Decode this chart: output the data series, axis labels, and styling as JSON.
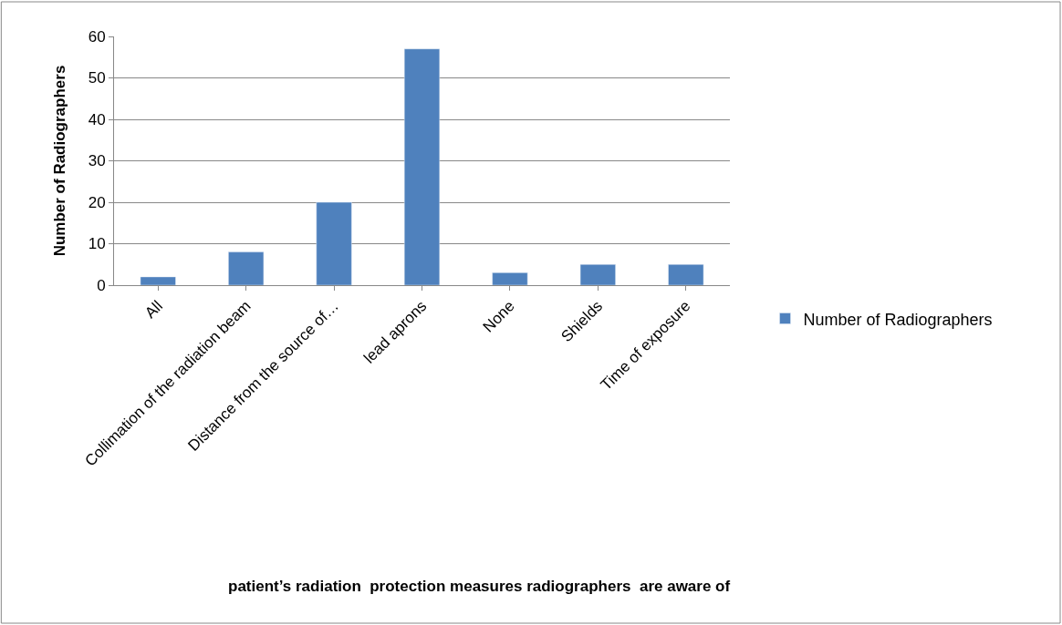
{
  "chart_data": {
    "type": "bar",
    "annotations": [
      "patient’s radiation  protection measures radiographers  are aware of"
    ],
    "ylabel": "Number of Radiographers",
    "categories": [
      "All",
      "Collimation of the radiation beam",
      "Distance from the source of…",
      "lead aprons",
      "None",
      "Shields",
      "Time of exposure"
    ],
    "series": [
      {
        "name": "Number of Radiographers",
        "color": "#4f81bd",
        "values": [
          2,
          8,
          20,
          57,
          3,
          5,
          5
        ]
      }
    ],
    "ylim": [
      0,
      60
    ],
    "yticks": [
      0,
      10,
      20,
      30,
      40,
      50,
      60
    ],
    "grid": "y",
    "legend": "right"
  }
}
